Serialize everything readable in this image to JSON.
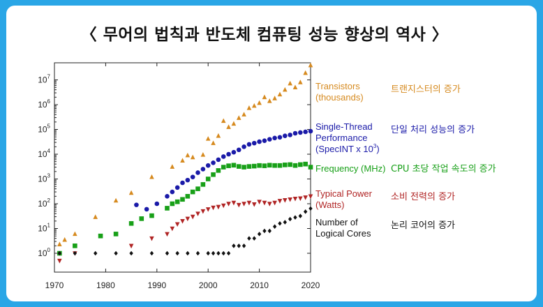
{
  "title": "〈 무어의 법칙과 반도체 컴퓨팅 성능 향상의 역사 〉",
  "colors": {
    "transistors": "#d68a1f",
    "single_thread": "#1a1aa8",
    "frequency": "#18a018",
    "power": "#b02424",
    "cores": "#111111"
  },
  "chart_data": {
    "type": "scatter",
    "title": "",
    "xlabel": "",
    "ylabel": "",
    "xlim": [
      1970,
      2020
    ],
    "ylim": [
      0.3,
      50000000
    ],
    "y_scale": "log",
    "x_ticks": [
      "1970",
      "1980",
      "1990",
      "2000",
      "2010",
      "2020"
    ],
    "y_ticks": [
      {
        "base": "10",
        "exp": "0"
      },
      {
        "base": "10",
        "exp": "1"
      },
      {
        "base": "10",
        "exp": "2"
      },
      {
        "base": "10",
        "exp": "3"
      },
      {
        "base": "10",
        "exp": "4"
      },
      {
        "base": "10",
        "exp": "5"
      },
      {
        "base": "10",
        "exp": "6"
      },
      {
        "base": "10",
        "exp": "7"
      }
    ],
    "series": [
      {
        "key": "transistors",
        "marker": "triangle-up",
        "legend_en": [
          "Transistors",
          "(thousands)"
        ],
        "legend_ko": "트랜지스터의 증가",
        "points": [
          [
            1971,
            2.3
          ],
          [
            1972,
            3.5
          ],
          [
            1974,
            6
          ],
          [
            1978,
            29
          ],
          [
            1982,
            134
          ],
          [
            1985,
            275
          ],
          [
            1989,
            1200
          ],
          [
            1993,
            3100
          ],
          [
            1995,
            5500
          ],
          [
            1997,
            7500
          ],
          [
            1999,
            9500
          ],
          [
            2000,
            42000
          ],
          [
            2002,
            55000
          ],
          [
            2004,
            125000
          ],
          [
            2006,
            291000
          ],
          [
            2008,
            731000
          ],
          [
            2010,
            1170000
          ],
          [
            2012,
            1400000
          ],
          [
            2014,
            2600000
          ],
          [
            2016,
            7200000
          ],
          [
            2018,
            8000000
          ],
          [
            2019,
            19000000
          ],
          [
            2020,
            39000000
          ],
          [
            1996,
            9000
          ],
          [
            2001,
            28000
          ],
          [
            2003,
            220000
          ],
          [
            2005,
            170000
          ],
          [
            2007,
            400000
          ],
          [
            2009,
            900000
          ],
          [
            2011,
            2000000
          ],
          [
            2013,
            1800000
          ],
          [
            2015,
            4000000
          ],
          [
            2017,
            5000000
          ]
        ]
      },
      {
        "key": "single_thread",
        "marker": "circle",
        "legend_en": [
          "Single-Thread",
          "Performance",
          "(SpecINT x 10"
        ],
        "legend_exp": "3",
        "legend_close": ")",
        "legend_ko": "단일 처리 성능의 증가",
        "points": [
          [
            1986,
            90
          ],
          [
            1988,
            60
          ],
          [
            1990,
            100
          ],
          [
            1992,
            200
          ],
          [
            1993,
            300
          ],
          [
            1994,
            450
          ],
          [
            1995,
            700
          ],
          [
            1996,
            900
          ],
          [
            1997,
            1200
          ],
          [
            1998,
            1800
          ],
          [
            1999,
            2500
          ],
          [
            2000,
            3500
          ],
          [
            2001,
            4500
          ],
          [
            2002,
            6000
          ],
          [
            2003,
            8000
          ],
          [
            2004,
            10000
          ],
          [
            2005,
            12000
          ],
          [
            2006,
            15000
          ],
          [
            2007,
            20000
          ],
          [
            2008,
            25000
          ],
          [
            2009,
            28000
          ],
          [
            2010,
            32000
          ],
          [
            2011,
            35000
          ],
          [
            2012,
            40000
          ],
          [
            2013,
            45000
          ],
          [
            2014,
            48000
          ],
          [
            2015,
            55000
          ],
          [
            2016,
            60000
          ],
          [
            2017,
            70000
          ],
          [
            2018,
            75000
          ],
          [
            2019,
            80000
          ],
          [
            2020,
            85000
          ]
        ]
      },
      {
        "key": "frequency",
        "marker": "square",
        "legend_en": [
          "Frequency (MHz)"
        ],
        "legend_ko": "CPU 초당 작업 속도의 증가",
        "points": [
          [
            1971,
            1
          ],
          [
            1974,
            2
          ],
          [
            1979,
            5
          ],
          [
            1982,
            6
          ],
          [
            1985,
            16
          ],
          [
            1987,
            25
          ],
          [
            1989,
            33
          ],
          [
            1992,
            66
          ],
          [
            1993,
            100
          ],
          [
            1994,
            120
          ],
          [
            1995,
            150
          ],
          [
            1996,
            200
          ],
          [
            1997,
            300
          ],
          [
            1998,
            400
          ],
          [
            1999,
            600
          ],
          [
            2000,
            1000
          ],
          [
            2001,
            1500
          ],
          [
            2002,
            2200
          ],
          [
            2003,
            3000
          ],
          [
            2004,
            3400
          ],
          [
            2005,
            3600
          ],
          [
            2006,
            3200
          ],
          [
            2007,
            3000
          ],
          [
            2008,
            3200
          ],
          [
            2009,
            3300
          ],
          [
            2010,
            3500
          ],
          [
            2011,
            3400
          ],
          [
            2012,
            3600
          ],
          [
            2013,
            3500
          ],
          [
            2014,
            3500
          ],
          [
            2015,
            3700
          ],
          [
            2016,
            3800
          ],
          [
            2017,
            3500
          ],
          [
            2018,
            3800
          ],
          [
            2019,
            4000
          ],
          [
            2020,
            3000
          ]
        ]
      },
      {
        "key": "power",
        "marker": "triangle-down",
        "legend_en": [
          "Typical Power",
          "(Watts)"
        ],
        "legend_ko": "소비 전력의 증가",
        "points": [
          [
            1971,
            0.5
          ],
          [
            1974,
            1
          ],
          [
            1985,
            2
          ],
          [
            1989,
            4
          ],
          [
            1992,
            6
          ],
          [
            1993,
            10
          ],
          [
            1994,
            15
          ],
          [
            1995,
            20
          ],
          [
            1996,
            25
          ],
          [
            1997,
            30
          ],
          [
            1998,
            40
          ],
          [
            1999,
            50
          ],
          [
            2000,
            60
          ],
          [
            2001,
            70
          ],
          [
            2002,
            75
          ],
          [
            2003,
            85
          ],
          [
            2004,
            100
          ],
          [
            2005,
            110
          ],
          [
            2006,
            90
          ],
          [
            2007,
            100
          ],
          [
            2008,
            110
          ],
          [
            2009,
            95
          ],
          [
            2010,
            120
          ],
          [
            2011,
            110
          ],
          [
            2012,
            100
          ],
          [
            2013,
            110
          ],
          [
            2014,
            130
          ],
          [
            2015,
            140
          ],
          [
            2016,
            150
          ],
          [
            2017,
            160
          ],
          [
            2018,
            165
          ],
          [
            2019,
            180
          ],
          [
            2020,
            200
          ]
        ]
      },
      {
        "key": "cores",
        "marker": "diamond",
        "legend_en": [
          "Number of",
          "Logical Cores"
        ],
        "legend_ko": "논리 코어의 증가",
        "points": [
          [
            1971,
            1
          ],
          [
            1974,
            1
          ],
          [
            1978,
            1
          ],
          [
            1982,
            1
          ],
          [
            1985,
            1
          ],
          [
            1989,
            1
          ],
          [
            1992,
            1
          ],
          [
            1994,
            1
          ],
          [
            1996,
            1
          ],
          [
            1998,
            1
          ],
          [
            2000,
            1
          ],
          [
            2001,
            1
          ],
          [
            2002,
            1
          ],
          [
            2003,
            1
          ],
          [
            2004,
            1
          ],
          [
            2005,
            2
          ],
          [
            2006,
            2
          ],
          [
            2007,
            2
          ],
          [
            2008,
            4
          ],
          [
            2009,
            4
          ],
          [
            2010,
            6
          ],
          [
            2011,
            8
          ],
          [
            2012,
            8
          ],
          [
            2013,
            12
          ],
          [
            2014,
            16
          ],
          [
            2015,
            18
          ],
          [
            2016,
            24
          ],
          [
            2017,
            28
          ],
          [
            2018,
            32
          ],
          [
            2019,
            48
          ],
          [
            2020,
            64
          ]
        ]
      }
    ]
  }
}
